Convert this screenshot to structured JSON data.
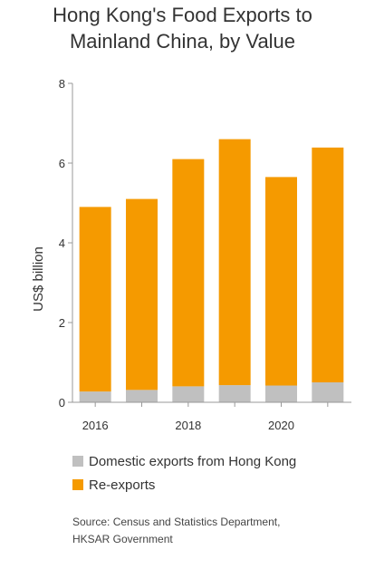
{
  "title_lines": [
    "Hong Kong's Food Exports to",
    "Mainland China, by Value"
  ],
  "legend": {
    "domestic": "Domestic exports from Hong Kong",
    "reexports": "Re-exports"
  },
  "source_lines": [
    "Source: Census and Statistics Department,",
    "HKSAR Government"
  ],
  "colors": {
    "domestic": "#c0c0c0",
    "reexports": "#f59a00"
  },
  "chart_data": {
    "type": "bar",
    "stacked": true,
    "title": "Hong Kong's Food Exports to Mainland China, by Value",
    "xlabel": "",
    "ylabel": "US$ billion",
    "ylim": [
      0,
      8
    ],
    "yticks": [
      0,
      2,
      4,
      6,
      8
    ],
    "x": [
      2016,
      2017,
      2018,
      2019,
      2020,
      2021
    ],
    "xtick_labels": [
      "2016",
      "",
      "2018",
      "",
      "2020",
      ""
    ],
    "series": [
      {
        "name": "Domestic exports from Hong Kong",
        "values": [
          0.27,
          0.31,
          0.4,
          0.43,
          0.42,
          0.5
        ]
      },
      {
        "name": "Re-exports",
        "values": [
          4.63,
          4.79,
          5.7,
          6.17,
          5.23,
          5.89
        ]
      }
    ],
    "grid": false,
    "legend_position": "bottom"
  }
}
